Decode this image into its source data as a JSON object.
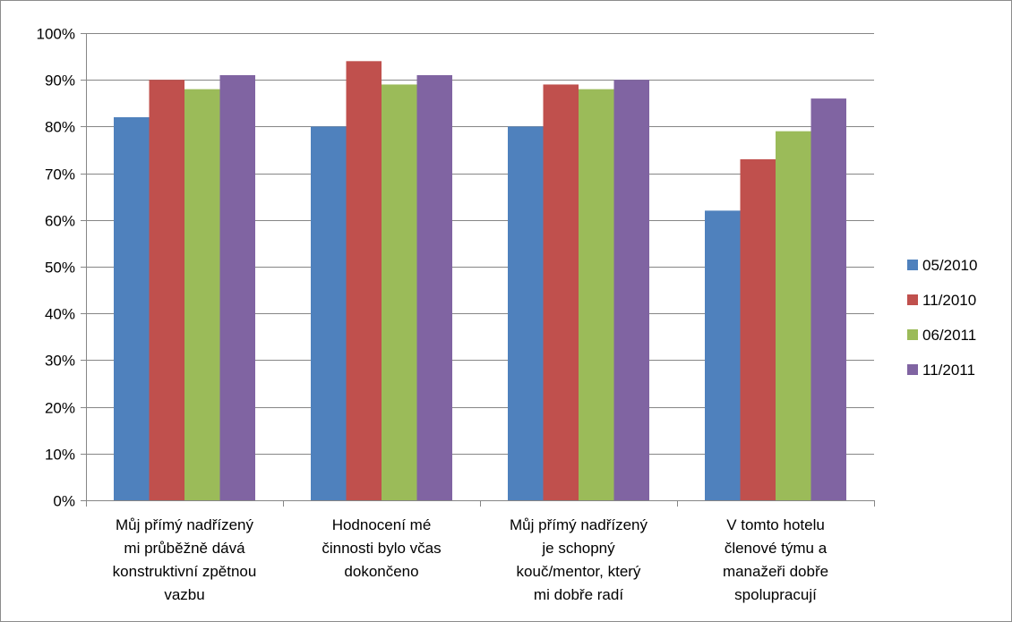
{
  "chart_data": {
    "type": "bar",
    "categories": [
      [
        "Můj přímý nadřízený",
        "mi průběžně dává",
        "konstruktivní zpětnou",
        "vazbu"
      ],
      [
        "Hodnocení mé",
        "činnosti bylo včas",
        "dokončeno"
      ],
      [
        "Můj přímý nadřízený",
        "je schopný",
        "kouč/mentor, který",
        "mi dobře radí"
      ],
      [
        "V tomto hotelu",
        "členové týmu a",
        "manažeři dobře",
        "spolupracují"
      ]
    ],
    "series": [
      {
        "name": "05/2010",
        "color": "#4f81bd",
        "values": [
          82,
          80,
          80,
          62
        ]
      },
      {
        "name": "11/2010",
        "color": "#c0504d",
        "values": [
          90,
          94,
          89,
          73
        ]
      },
      {
        "name": "06/2011",
        "color": "#9bbb59",
        "values": [
          88,
          89,
          88,
          79
        ]
      },
      {
        "name": "11/2011",
        "color": "#8064a2",
        "values": [
          91,
          91,
          90,
          86
        ]
      }
    ],
    "y_ticks": [
      "0%",
      "10%",
      "20%",
      "30%",
      "40%",
      "50%",
      "60%",
      "70%",
      "80%",
      "90%",
      "100%"
    ],
    "ylim": [
      0,
      100
    ],
    "grid": true,
    "legend_position": "right",
    "gridline_color": "#868686"
  }
}
